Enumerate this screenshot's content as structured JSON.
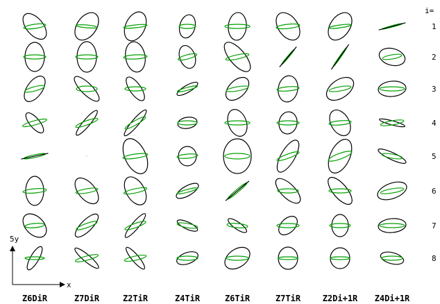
{
  "row_header": "i=",
  "rows": [
    "1",
    "2",
    "3",
    "4",
    "5",
    "6",
    "7",
    "8"
  ],
  "columns": [
    "Z6DiR",
    "Z7DiR",
    "Z2TiR",
    "Z4TiR",
    "Z6TiR",
    "Z7TiR",
    "Z2Di+1R",
    "Z4Di+1R"
  ],
  "axes": {
    "y_label": "5y",
    "x_label": "x"
  },
  "colors": {
    "outer_ellipse": "#000000",
    "inner_ellipse": "#00a000"
  },
  "ellipses": [
    [
      [
        12,
        22,
        -40,
        16,
        3,
        -8
      ],
      [
        14,
        22,
        35,
        15,
        2,
        5
      ],
      [
        14,
        22,
        25,
        17,
        2,
        -6
      ],
      [
        11,
        17,
        15,
        12,
        3,
        0
      ],
      [
        13,
        20,
        5,
        18,
        3,
        0
      ],
      [
        14,
        22,
        -35,
        17,
        3,
        -6
      ],
      [
        14,
        22,
        35,
        16,
        2,
        -8
      ],
      [
        0,
        0,
        0,
        16,
        1,
        -15
      ]
    ],
    [
      [
        14,
        21,
        0,
        16,
        3,
        0
      ],
      [
        14,
        22,
        0,
        16,
        3,
        0
      ],
      [
        14,
        22,
        -10,
        17,
        3,
        -3
      ],
      [
        11,
        17,
        -20,
        14,
        3,
        -15
      ],
      [
        11,
        26,
        -40,
        17,
        3,
        -12
      ],
      [
        0,
        0,
        0,
        15,
        1,
        -50
      ],
      [
        0,
        0,
        0,
        18,
        1,
        -55
      ],
      [
        12,
        19,
        -75,
        14,
        3,
        -10
      ]
    ],
    [
      [
        11,
        21,
        35,
        15,
        3,
        -15
      ],
      [
        8,
        24,
        -45,
        15,
        4,
        0
      ],
      [
        8,
        20,
        -35,
        15,
        3,
        0
      ],
      [
        5,
        17,
        60,
        15,
        2,
        -15
      ],
      [
        12,
        20,
        45,
        16,
        3,
        -10
      ],
      [
        14,
        19,
        10,
        16,
        3,
        -5
      ],
      [
        13,
        22,
        55,
        16,
        3,
        -10
      ],
      [
        11,
        20,
        85,
        18,
        3,
        0
      ]
    ],
    [
      [
        7,
        18,
        -40,
        18,
        3,
        -15
      ],
      [
        5,
        23,
        40,
        17,
        3,
        -20
      ],
      [
        5,
        24,
        40,
        17,
        3,
        -30
      ],
      [
        8,
        14,
        80,
        14,
        3,
        0
      ],
      [
        13,
        20,
        -20,
        18,
        3,
        0
      ],
      [
        13,
        16,
        10,
        16,
        3,
        0
      ],
      [
        13,
        20,
        -30,
        16,
        3,
        -5
      ],
      [
        3,
        19,
        -75,
        17,
        3,
        -10
      ]
    ],
    [
      [
        0,
        0,
        0,
        16,
        2,
        -12
      ],
      [
        0,
        0,
        0,
        0,
        0,
        0
      ],
      [
        15,
        27,
        -25,
        18,
        3,
        -8
      ],
      [
        13,
        14,
        0,
        15,
        3,
        -5
      ],
      [
        20,
        25,
        0,
        18,
        4,
        0
      ],
      [
        10,
        26,
        30,
        17,
        3,
        -20
      ],
      [
        14,
        26,
        25,
        18,
        4,
        -20
      ],
      [
        5,
        22,
        -65,
        15,
        3,
        10
      ]
    ],
    [
      [
        13,
        21,
        0,
        17,
        3,
        -5
      ],
      [
        12,
        22,
        -40,
        16,
        3,
        -10
      ],
      [
        13,
        22,
        -30,
        17,
        3,
        -12
      ],
      [
        7,
        18,
        60,
        15,
        2,
        -15
      ],
      [
        0,
        0,
        0,
        18,
        2,
        -40
      ],
      [
        10,
        23,
        -45,
        15,
        3,
        0
      ],
      [
        10,
        24,
        -40,
        16,
        3,
        0
      ],
      [
        11,
        22,
        70,
        17,
        3,
        -10
      ]
    ],
    [
      [
        13,
        20,
        -45,
        14,
        3,
        -5
      ],
      [
        8,
        22,
        45,
        16,
        3,
        -20
      ],
      [
        5,
        22,
        40,
        16,
        3,
        -20
      ],
      [
        5,
        16,
        -65,
        15,
        3,
        10
      ],
      [
        5,
        16,
        -55,
        15,
        3,
        5
      ],
      [
        10,
        16,
        45,
        16,
        3,
        0
      ],
      [
        12,
        16,
        0,
        15,
        3,
        0
      ],
      [
        10,
        20,
        85,
        18,
        3,
        0
      ]
    ],
    [
      [
        6,
        19,
        30,
        14,
        2,
        0
      ],
      [
        5,
        22,
        -50,
        17,
        3,
        -15
      ],
      [
        5,
        20,
        -40,
        16,
        3,
        -12
      ],
      [
        8,
        16,
        70,
        15,
        3,
        0
      ],
      [
        13,
        20,
        55,
        16,
        3,
        0
      ],
      [
        14,
        16,
        0,
        14,
        2,
        0
      ],
      [
        14,
        15,
        0,
        14,
        2,
        0
      ],
      [
        8,
        17,
        -75,
        15,
        3,
        0
      ]
    ]
  ]
}
